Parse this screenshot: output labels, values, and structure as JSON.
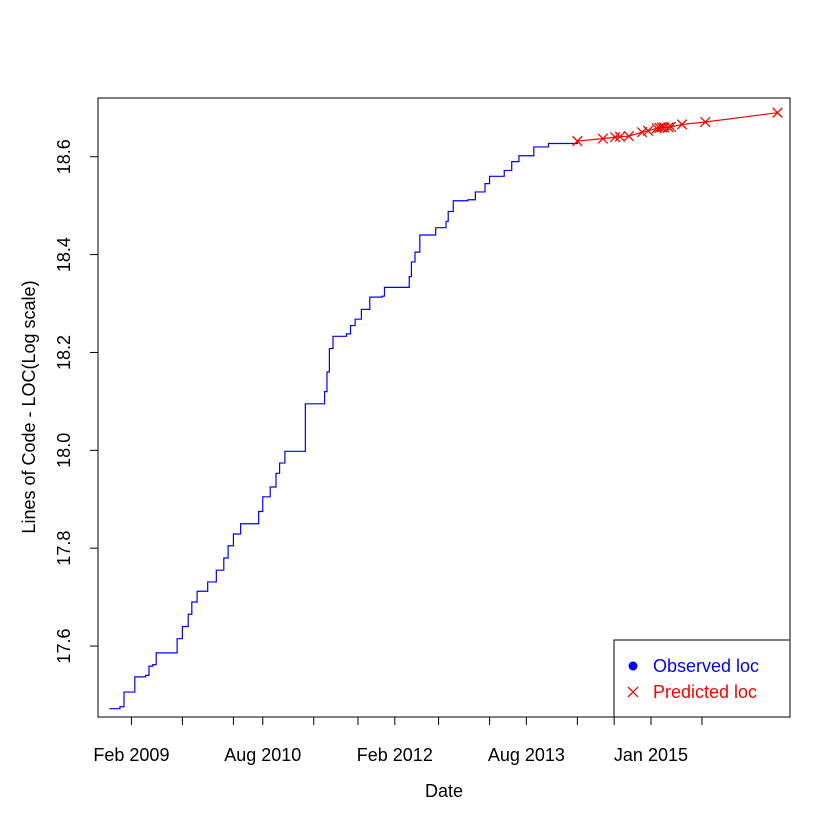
{
  "chart_data": {
    "type": "line",
    "title": "",
    "xlabel": "Date",
    "ylabel": "Lines of Code - LOC(Log scale)",
    "x_tick_labels": [
      "Feb 2009",
      "Aug 2010",
      "Feb 2012",
      "Aug 2013",
      "Jan 2015"
    ],
    "x_tick_dates": [
      "2008-12-01",
      "2009-02-01",
      "2009-09-01",
      "2010-04-01",
      "2010-08-01",
      "2011-03-01",
      "2011-09-01",
      "2012-02-01",
      "2012-08-01",
      "2013-03-01",
      "2013-08-01",
      "2014-03-01",
      "2014-08-01",
      "2015-01-01",
      "2015-08-01",
      "2016-03-01"
    ],
    "xlim": [
      "2008-09-15",
      "2016-08-01"
    ],
    "y_ticks": [
      "17.6",
      "17.8",
      "18.0",
      "18.2",
      "18.4",
      "18.6"
    ],
    "ylim": [
      17.455,
      18.72
    ],
    "grid": false,
    "legend_position": "bottom-right",
    "series": [
      {
        "name": "Observed loc",
        "color": "#0000ff",
        "marker": "line",
        "legend_marker": "filled-circle",
        "step": true,
        "points": [
          [
            "2008-11-01",
            17.472
          ],
          [
            "2008-12-15",
            17.476
          ],
          [
            "2009-01-01",
            17.506
          ],
          [
            "2009-02-01",
            17.506
          ],
          [
            "2009-02-15",
            17.537
          ],
          [
            "2009-04-01",
            17.54
          ],
          [
            "2009-04-15",
            17.559
          ],
          [
            "2009-05-01",
            17.562
          ],
          [
            "2009-05-15",
            17.586
          ],
          [
            "2009-08-01",
            17.586
          ],
          [
            "2009-08-10",
            17.615
          ],
          [
            "2009-09-01",
            17.64
          ],
          [
            "2009-09-25",
            17.665
          ],
          [
            "2009-10-10",
            17.69
          ],
          [
            "2009-11-01",
            17.712
          ],
          [
            "2009-12-15",
            17.731
          ],
          [
            "2010-01-20",
            17.755
          ],
          [
            "2010-02-20",
            17.78
          ],
          [
            "2010-03-10",
            17.805
          ],
          [
            "2010-04-01",
            17.829
          ],
          [
            "2010-05-01",
            17.85
          ],
          [
            "2010-07-01",
            17.85
          ],
          [
            "2010-07-15",
            17.875
          ],
          [
            "2010-08-01",
            17.905
          ],
          [
            "2010-09-01",
            17.925
          ],
          [
            "2010-09-25",
            17.953
          ],
          [
            "2010-10-10",
            17.974
          ],
          [
            "2010-11-01",
            17.998
          ],
          [
            "2011-01-10",
            17.998
          ],
          [
            "2011-01-25",
            18.095
          ],
          [
            "2011-04-01",
            18.095
          ],
          [
            "2011-04-15",
            18.12
          ],
          [
            "2011-04-25",
            18.16
          ],
          [
            "2011-05-05",
            18.208
          ],
          [
            "2011-05-20",
            18.233
          ],
          [
            "2011-07-15",
            18.238
          ],
          [
            "2011-08-01",
            18.255
          ],
          [
            "2011-08-20",
            18.268
          ],
          [
            "2011-09-15",
            18.288
          ],
          [
            "2011-10-20",
            18.313
          ],
          [
            "2011-12-10",
            18.315
          ],
          [
            "2011-12-20",
            18.333
          ],
          [
            "2012-03-15",
            18.333
          ],
          [
            "2012-04-01",
            18.355
          ],
          [
            "2012-04-10",
            18.385
          ],
          [
            "2012-04-25",
            18.405
          ],
          [
            "2012-05-15",
            18.44
          ],
          [
            "2012-07-20",
            18.455
          ],
          [
            "2012-09-01",
            18.468
          ],
          [
            "2012-09-10",
            18.488
          ],
          [
            "2012-10-01",
            18.51
          ],
          [
            "2012-12-01",
            18.512
          ],
          [
            "2013-01-01",
            18.528
          ],
          [
            "2013-02-10",
            18.545
          ],
          [
            "2013-03-01",
            18.56
          ],
          [
            "2013-05-01",
            18.572
          ],
          [
            "2013-06-01",
            18.59
          ],
          [
            "2013-07-01",
            18.602
          ],
          [
            "2013-09-01",
            18.62
          ],
          [
            "2013-11-01",
            18.627
          ],
          [
            "2014-03-01",
            18.632
          ]
        ]
      },
      {
        "name": "Predicted loc",
        "color": "#ff0000",
        "marker": "x",
        "step": false,
        "points": [
          [
            "2014-03-01",
            18.632
          ],
          [
            "2014-06-15",
            18.637
          ],
          [
            "2014-08-05",
            18.64
          ],
          [
            "2014-08-25",
            18.641
          ],
          [
            "2014-10-01",
            18.642
          ],
          [
            "2014-11-25",
            18.65
          ],
          [
            "2014-12-20",
            18.653
          ],
          [
            "2015-01-25",
            18.658
          ],
          [
            "2015-02-05",
            18.659
          ],
          [
            "2015-02-15",
            18.66
          ],
          [
            "2015-02-25",
            18.66
          ],
          [
            "2015-03-15",
            18.66
          ],
          [
            "2015-03-25",
            18.661
          ],
          [
            "2015-05-10",
            18.666
          ],
          [
            "2015-08-15",
            18.671
          ],
          [
            "2016-06-10",
            18.69
          ]
        ]
      }
    ]
  }
}
